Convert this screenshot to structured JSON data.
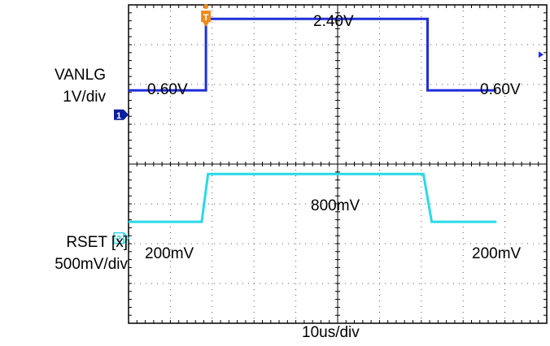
{
  "chart_data": {
    "type": "line",
    "title": "",
    "timebase_label": "10us/div",
    "grid": true,
    "divisions": {
      "x": 10,
      "y": 8
    },
    "time_per_div_us": 10,
    "channels": [
      {
        "id": "1",
        "name": "VANLG",
        "scale_label": "1V/div",
        "volts_per_div": 1,
        "color": "#1f2fd8",
        "marker_color": "#0a1f9c",
        "x_us": [
          0,
          18.5,
          18.5,
          71.5,
          71.5,
          88
        ],
        "y_volts": [
          0.6,
          0.6,
          2.4,
          2.4,
          0.6,
          0.6
        ],
        "level_labels": [
          "0.60V",
          "2.40V",
          "0.60V"
        ]
      },
      {
        "id": "2",
        "name": "RSET [x]",
        "scale_label": "500mV/div",
        "volts_per_div": 0.5,
        "color": "#29d9e8",
        "marker_color": "#29d9e8",
        "x_us": [
          0,
          17.5,
          19.0,
          70.5,
          72.5,
          88
        ],
        "y_volts": [
          0.2,
          0.2,
          0.8,
          0.8,
          0.2,
          0.2
        ],
        "level_labels": [
          "200mV",
          "800mV",
          "200mV"
        ]
      }
    ],
    "trigger": {
      "label": "T",
      "color": "#f08a1c",
      "x_us": 18.5
    }
  }
}
